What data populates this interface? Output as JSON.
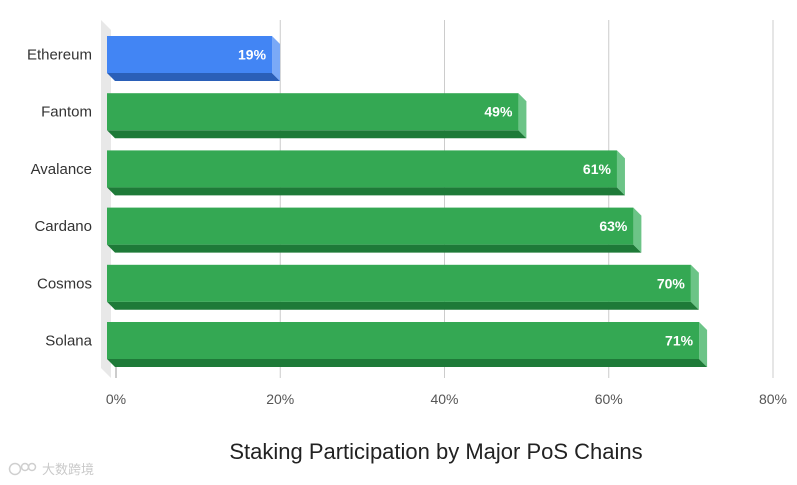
{
  "chart_data": {
    "type": "bar",
    "orientation": "horizontal",
    "title": "Staking Participation by Major PoS Chains",
    "xlabel": "",
    "ylabel": "",
    "categories": [
      "Ethereum",
      "Fantom",
      "Avalance",
      "Cardano",
      "Cosmos",
      "Solana"
    ],
    "values": [
      19,
      49,
      61,
      63,
      70,
      71
    ],
    "data_labels": [
      "19%",
      "49%",
      "61%",
      "63%",
      "70%",
      "71%"
    ],
    "colors": [
      "#4285f4",
      "#34a853",
      "#34a853",
      "#34a853",
      "#34a853",
      "#34a853"
    ],
    "shadow_colors": [
      "#2a5fb8",
      "#1e7a38",
      "#1e7a38",
      "#1e7a38",
      "#1e7a38",
      "#1e7a38"
    ],
    "side_colors": [
      "#7aa9f7",
      "#6cc487",
      "#6cc487",
      "#6cc487",
      "#6cc487",
      "#6cc487"
    ],
    "xlim": [
      0,
      80
    ],
    "xticks": [
      0,
      20,
      40,
      60,
      80
    ],
    "xtick_labels": [
      "0%",
      "20%",
      "40%",
      "60%",
      "80%"
    ],
    "grid": true,
    "legend": "none",
    "style": "3d"
  },
  "watermark": {
    "text": "大数跨境"
  }
}
